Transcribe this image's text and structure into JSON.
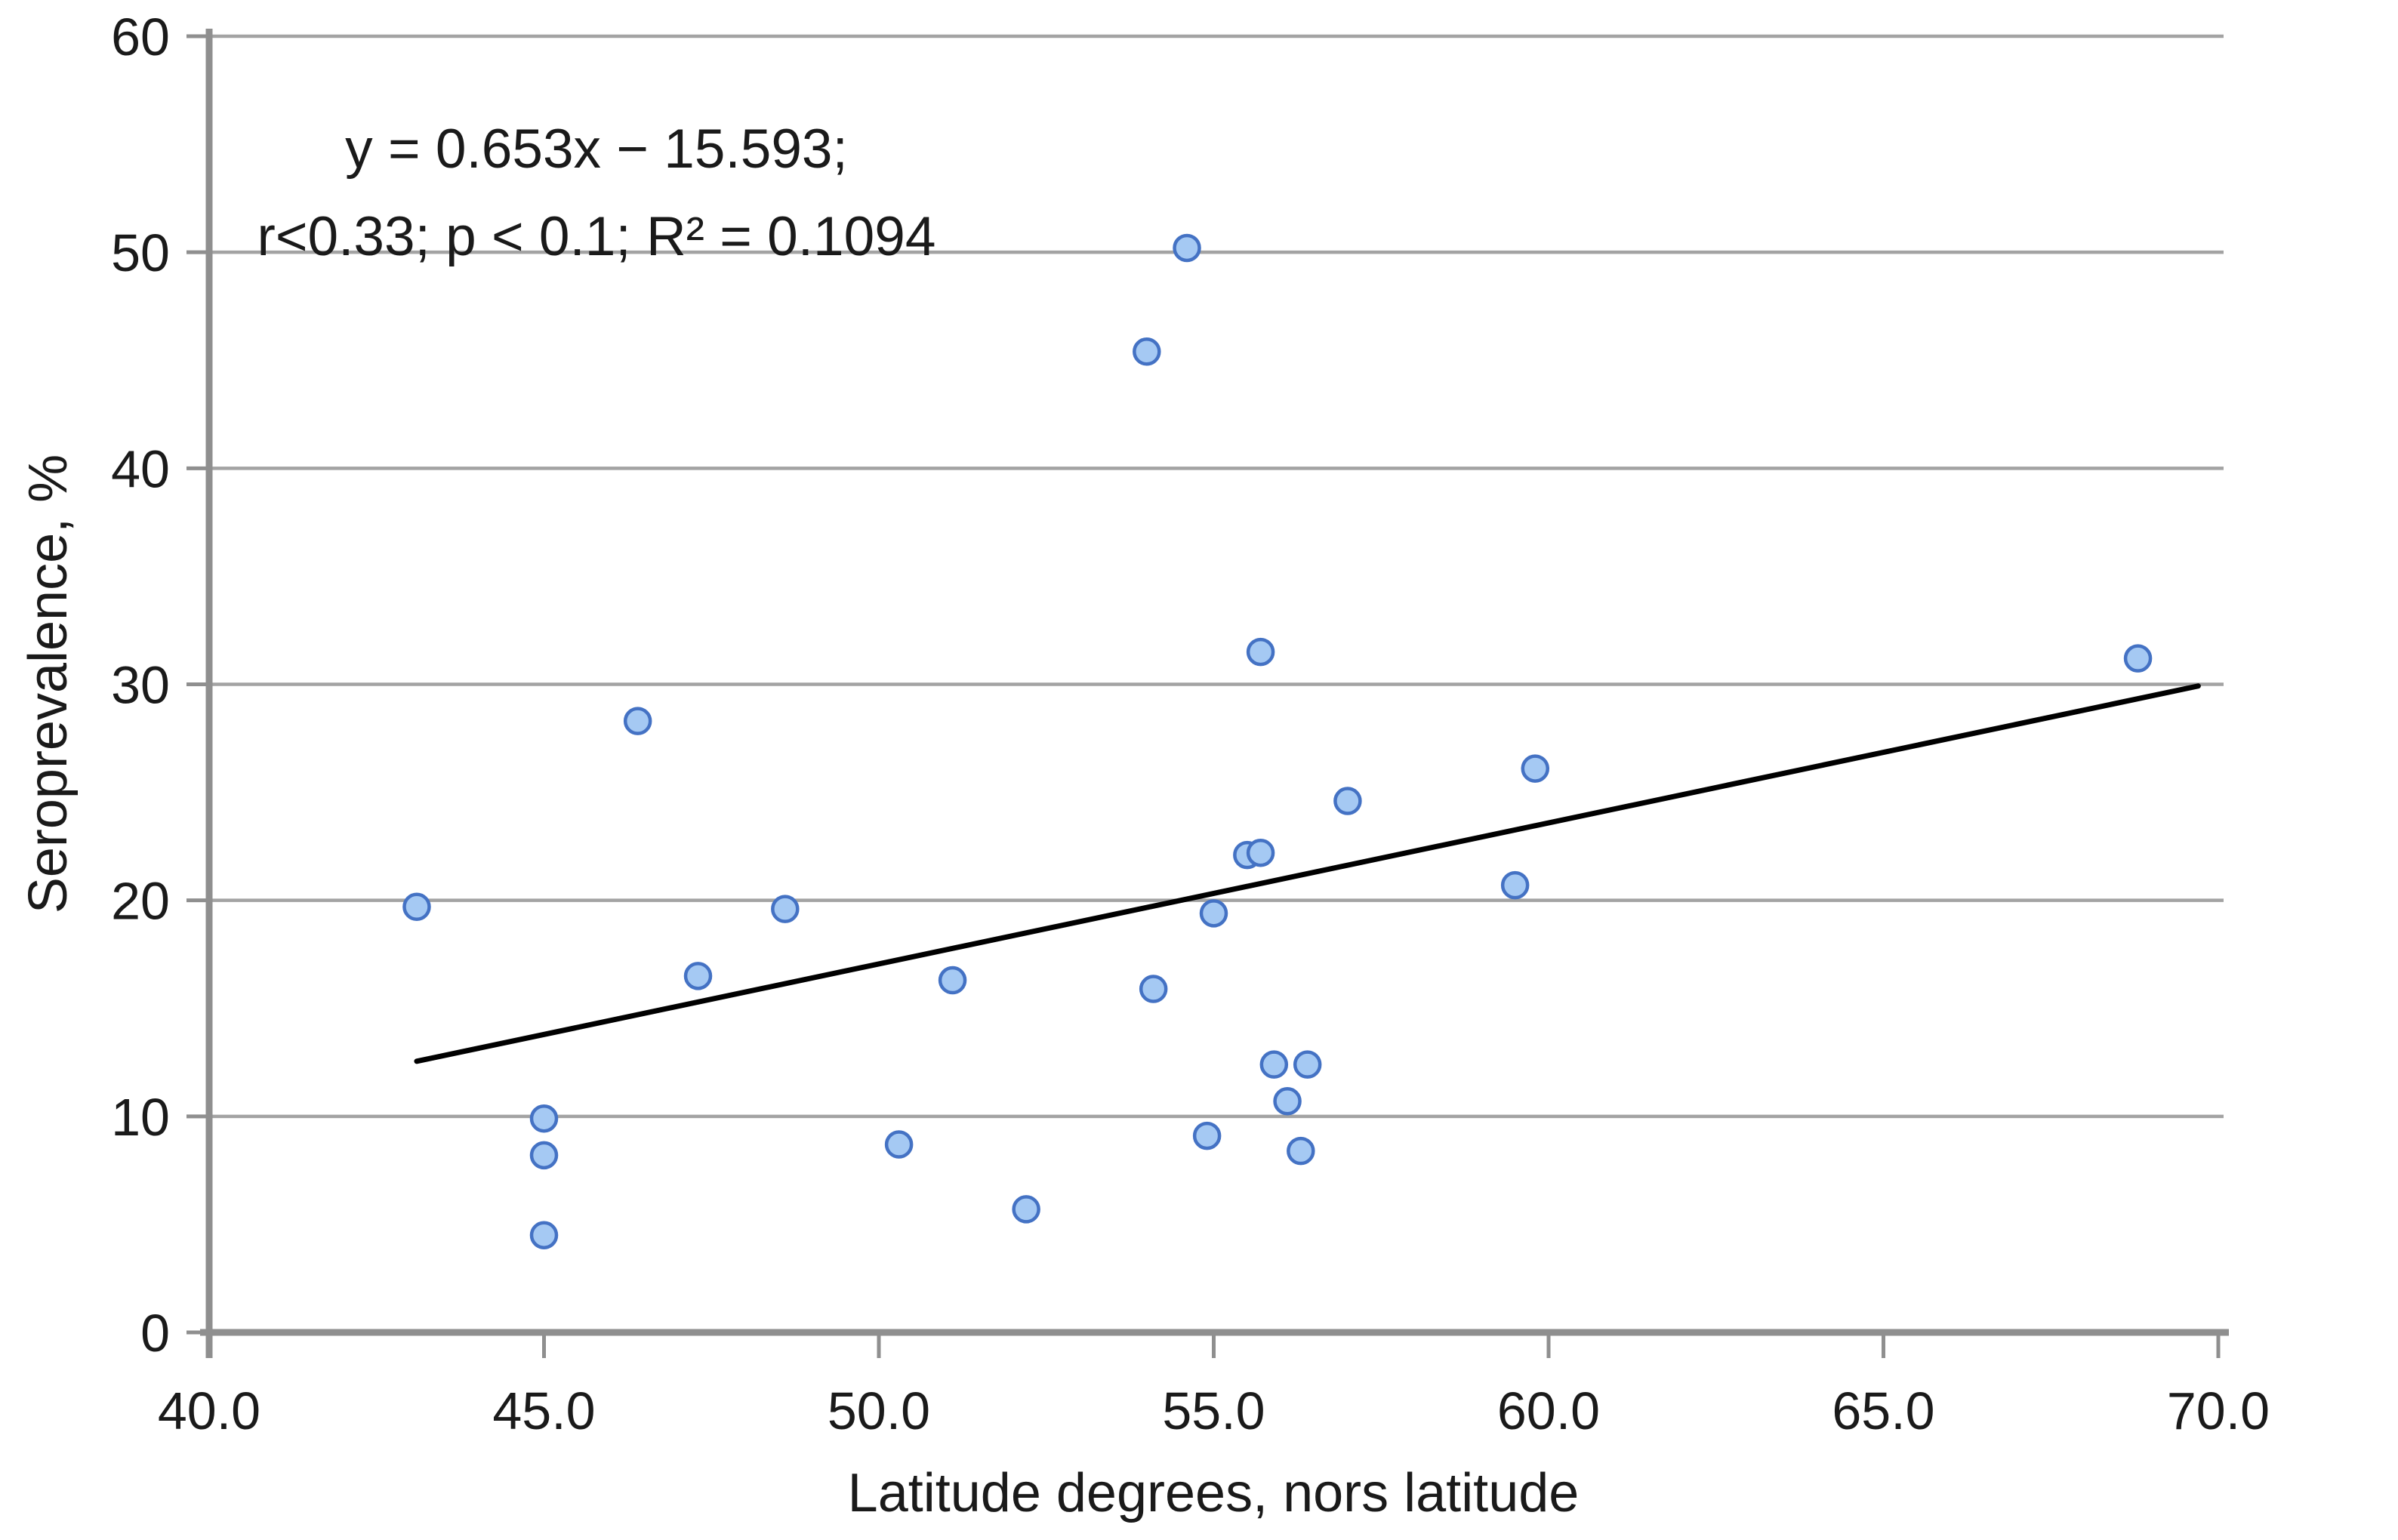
{
  "chart_data": {
    "type": "scatter",
    "title": "",
    "xlabel": "Latitude degrees, nors latitude",
    "ylabel": "Seroprevalence, %",
    "xlim": [
      40.0,
      70.0
    ],
    "ylim": [
      0,
      60
    ],
    "x_tick_values": [
      40,
      45,
      50,
      55,
      60,
      65,
      70
    ],
    "x_tick_labels": [
      "40.0",
      "45.0",
      "50.0",
      "55.0",
      "60.0",
      "65.0",
      "70.0"
    ],
    "y_tick_values": [
      0,
      10,
      20,
      30,
      40,
      50,
      60
    ],
    "y_tick_labels": [
      "0",
      "10",
      "20",
      "30",
      "40",
      "50",
      "60"
    ],
    "grid": "horizontal-only",
    "legend_position": "none",
    "annotation": {
      "line1": "y = 0.653x − 15.593;",
      "line2": "r<0.33; p < 0.1; R² = 0.1094"
    },
    "points": [
      [
        43.1,
        19.7
      ],
      [
        45.0,
        9.9
      ],
      [
        45.0,
        8.2
      ],
      [
        45.0,
        4.5
      ],
      [
        46.4,
        28.3
      ],
      [
        47.3,
        16.5
      ],
      [
        48.6,
        19.6
      ],
      [
        50.3,
        8.7
      ],
      [
        51.1,
        16.3
      ],
      [
        52.2,
        5.7
      ],
      [
        54.0,
        45.4
      ],
      [
        54.1,
        15.9
      ],
      [
        54.6,
        50.2
      ],
      [
        54.9,
        9.1
      ],
      [
        55.0,
        19.4
      ],
      [
        55.5,
        22.1
      ],
      [
        55.7,
        22.2
      ],
      [
        55.7,
        31.5
      ],
      [
        55.9,
        12.4
      ],
      [
        56.1,
        10.7
      ],
      [
        56.3,
        8.4
      ],
      [
        56.4,
        12.4
      ],
      [
        57.0,
        24.6
      ],
      [
        59.5,
        20.7
      ],
      [
        59.8,
        26.1
      ],
      [
        68.8,
        31.2
      ]
    ],
    "trendline": {
      "type": "linear",
      "slope": 0.653,
      "intercept": -15.593,
      "x_start": 43.1,
      "x_end": 69.7
    },
    "colors": {
      "marker_fill": "#a5c9f3",
      "marker_stroke": "#4472c4",
      "trendline": "#000000",
      "gridline": "#a3a3a3",
      "axis": "#8f8f8f",
      "text": "#1a1a1a"
    }
  }
}
